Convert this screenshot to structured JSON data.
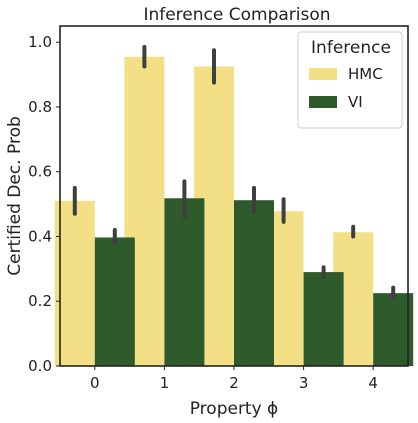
{
  "chart_data": {
    "type": "bar",
    "title": "Inference Comparison",
    "xlabel": "Property ϕ",
    "ylabel": "Certified Dec. Prob",
    "categories": [
      "0",
      "1",
      "2",
      "3",
      "4"
    ],
    "ylim": [
      0.0,
      1.05
    ],
    "yticks": [
      "0.0",
      "0.2",
      "0.4",
      "0.6",
      "0.8",
      "1.0"
    ],
    "grid": false,
    "legend": {
      "title": "Inference",
      "placement": "top-right"
    },
    "series": [
      {
        "name": "HMC",
        "color": "#f3df85",
        "values": [
          0.51,
          0.955,
          0.925,
          0.478,
          0.413
        ],
        "err_low": [
          0.47,
          0.925,
          0.875,
          0.445,
          0.4
        ],
        "err_high": [
          0.55,
          0.985,
          0.975,
          0.515,
          0.43
        ]
      },
      {
        "name": "VI",
        "color": "#2e5a2c",
        "values": [
          0.397,
          0.518,
          0.512,
          0.29,
          0.225
        ],
        "err_low": [
          0.38,
          0.46,
          0.475,
          0.275,
          0.21
        ],
        "err_high": [
          0.42,
          0.57,
          0.55,
          0.305,
          0.242
        ]
      }
    ]
  }
}
